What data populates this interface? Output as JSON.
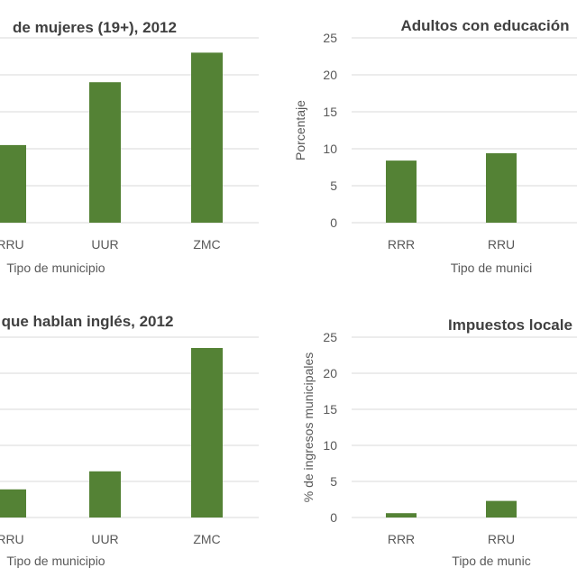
{
  "colors": {
    "bar": "#548235",
    "grid": "#d9d9d9",
    "text": "#404040"
  },
  "chart_data": [
    {
      "type": "bar",
      "title": "de mujeres (19+), 2012",
      "xlabel": "Tipo de municipio",
      "ylabel": "",
      "categories": [
        "RRU",
        "UUR",
        "ZMC"
      ],
      "values": [
        10.5,
        19.0,
        23.0
      ],
      "ylim": [
        0,
        25
      ],
      "yticks": [],
      "grid": true
    },
    {
      "type": "bar",
      "title": "Adultos con educación",
      "xlabel": "Tipo de munici",
      "ylabel": "Porcentaje",
      "categories": [
        "RRR",
        "RRU"
      ],
      "values": [
        8.4,
        9.4
      ],
      "ylim": [
        0,
        25
      ],
      "yticks": [
        "0",
        "5",
        "10",
        "15",
        "20",
        "25"
      ],
      "grid": true
    },
    {
      "type": "bar",
      "title": "que hablan inglés, 2012",
      "xlabel": "Tipo de municipio",
      "ylabel": "",
      "categories": [
        "RRU",
        "UUR",
        "ZMC"
      ],
      "values": [
        3.9,
        6.4,
        23.5
      ],
      "ylim": [
        0,
        25
      ],
      "yticks": [],
      "grid": true
    },
    {
      "type": "bar",
      "title": "Impuestos locale",
      "xlabel": "Tipo de munic",
      "ylabel": "% de ingresos municipales",
      "categories": [
        "RRR",
        "RRU"
      ],
      "values": [
        0.6,
        2.3
      ],
      "ylim": [
        0,
        25
      ],
      "yticks": [
        "0",
        "5",
        "10",
        "15",
        "20",
        "25"
      ],
      "grid": true
    }
  ]
}
